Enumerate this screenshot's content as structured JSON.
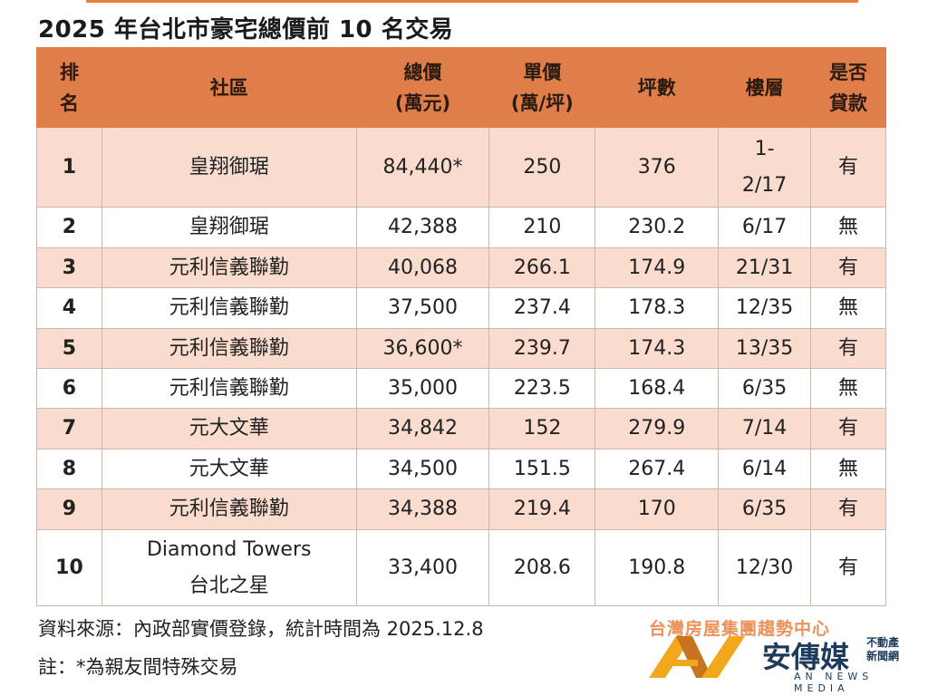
{
  "title": "2025 年台北市豪宅總價前 10 名交易",
  "table": {
    "headers": [
      [
        "排",
        "名"
      ],
      [
        "社區"
      ],
      [
        "總價",
        "(萬元)"
      ],
      [
        "單價",
        "(萬/坪)"
      ],
      [
        "坪數"
      ],
      [
        "樓層"
      ],
      [
        "是否",
        "貸款"
      ]
    ],
    "rows": [
      [
        "1",
        "皇翔御琚",
        "84,440*",
        "250",
        "376",
        "1-\n2/17",
        "有"
      ],
      [
        "2",
        "皇翔御琚",
        "42,388",
        "210",
        "230.2",
        "6/17",
        "無"
      ],
      [
        "3",
        "元利信義聯勤",
        "40,068",
        "266.1",
        "174.9",
        "21/31",
        "有"
      ],
      [
        "4",
        "元利信義聯勤",
        "37,500",
        "237.4",
        "178.3",
        "12/35",
        "無"
      ],
      [
        "5",
        "元利信義聯勤",
        "36,600*",
        "239.7",
        "174.3",
        "13/35",
        "有"
      ],
      [
        "6",
        "元利信義聯勤",
        "35,000",
        "223.5",
        "168.4",
        "6/35",
        "無"
      ],
      [
        "7",
        "元大文華",
        "34,842",
        "152",
        "279.9",
        "7/14",
        "有"
      ],
      [
        "8",
        "元大文華",
        "34,500",
        "151.5",
        "267.4",
        "6/14",
        "無"
      ],
      [
        "9",
        "元利信義聯勤",
        "34,388",
        "219.4",
        "170",
        "6/35",
        "有"
      ],
      [
        "10",
        "Diamond Towers\n台北之星",
        "33,400",
        "208.6",
        "190.8",
        "12/30",
        "有"
      ]
    ]
  },
  "source": "資料來源：內政部實價登錄，統計時間為 2025.12.8",
  "note": "註：*為親友間特殊交易",
  "logos": {
    "org": "台灣房屋集團趨勢中心",
    "media_cn": "安傳媒",
    "media_sub": "不動產新聞網",
    "media_en": "AN NEWS MEDIA"
  },
  "colors": {
    "header": "#E07E4A",
    "row_alt": "#F9DCCD",
    "accent": "#E8803F"
  }
}
